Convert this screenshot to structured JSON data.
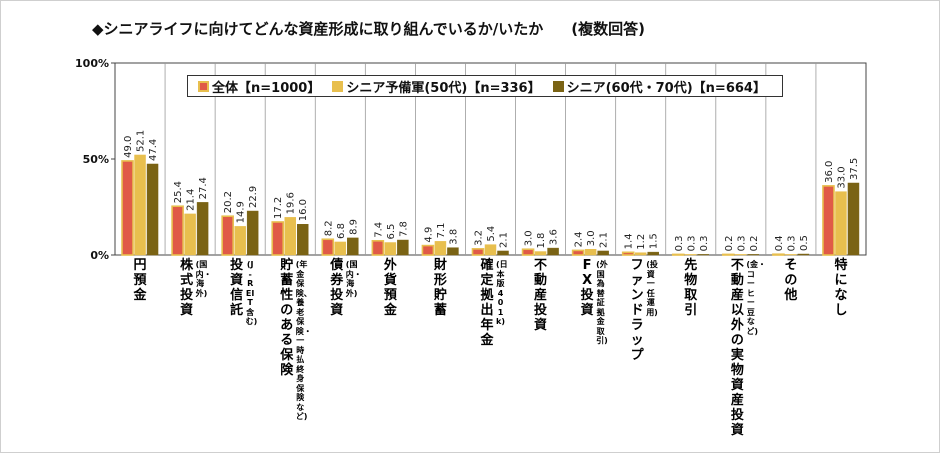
{
  "title": "◆シニアライフに向けてどんな資産形成に取り組んでいるか/いたか",
  "subtitle": "(複数回答)",
  "chart_data": {
    "type": "bar",
    "ylim": [
      0,
      100
    ],
    "yticks": [
      "0%",
      "50%",
      "100%"
    ],
    "grid": false,
    "legend_position": "top",
    "categories": [
      {
        "main": "円預金",
        "sub": ""
      },
      {
        "main": "株式投資",
        "sub": "(国内・海外)"
      },
      {
        "main": "投資信託",
        "sub": "(J-REIT含む)"
      },
      {
        "main": "貯蓄性のある保険",
        "sub": "(年金保険、養老保険・一時払終身保険など)"
      },
      {
        "main": "債券投資",
        "sub": "(国内・海外)"
      },
      {
        "main": "外貨預金",
        "sub": ""
      },
      {
        "main": "財形貯蓄",
        "sub": ""
      },
      {
        "main": "確定拠出年金",
        "sub": "(日本版401k)"
      },
      {
        "main": "不動産投資",
        "sub": ""
      },
      {
        "main": "FX投資",
        "sub": "(外国為替証拠金取引)"
      },
      {
        "main": "ファンドラップ",
        "sub": "(投資一任運用)"
      },
      {
        "main": "先物取引",
        "sub": ""
      },
      {
        "main": "不動産以外の実物資産投資",
        "sub": "(金・コーヒー豆など)"
      },
      {
        "main": "その他",
        "sub": ""
      },
      {
        "main": "特になし",
        "sub": ""
      }
    ],
    "series": [
      {
        "name": "全体【n=1000】",
        "color": "#e05a47",
        "border": "#e8bf4e",
        "values": [
          49.0,
          25.4,
          20.2,
          17.2,
          8.2,
          7.4,
          4.9,
          3.2,
          3.0,
          2.4,
          1.4,
          0.3,
          0.2,
          0.4,
          36.0
        ],
        "labels": [
          "49.0",
          "25.4",
          "20.2",
          "17.2",
          "8.2",
          "7.4",
          "4.9",
          "3.2",
          "3.0",
          "2.4",
          "1.4",
          "0.3",
          "0.2",
          "0.4",
          "36.0"
        ]
      },
      {
        "name": "シニア予備軍(50代)【n=336】",
        "color": "#e8bf4e",
        "border": "#e8bf4e",
        "values": [
          52.1,
          21.4,
          14.9,
          19.6,
          6.8,
          6.5,
          7.1,
          5.4,
          1.8,
          3.0,
          1.2,
          0.3,
          0.3,
          0.3,
          33.0
        ],
        "labels": [
          "52.1",
          "21.4",
          "14.9",
          "19.6",
          "6.8",
          "6.5",
          "7.1",
          "5.4",
          "1.8",
          "3.0",
          "1.2",
          "0.3",
          "0.3",
          "0.3",
          "33.0"
        ]
      },
      {
        "name": "シニア(60代・70代)【n=664】",
        "color": "#7a6314",
        "border": "#7a6314",
        "values": [
          47.4,
          27.4,
          22.9,
          16.0,
          8.9,
          7.8,
          3.8,
          2.1,
          3.6,
          2.1,
          1.5,
          0.3,
          0.2,
          0.5,
          37.5
        ],
        "labels": [
          "47.4",
          "27.4",
          "22.9",
          "16.0",
          "8.9",
          "7.8",
          "3.8",
          "2.1",
          "3.6",
          "2.1",
          "1.5",
          "0.3",
          "0.2",
          "0.5",
          "37.5"
        ]
      }
    ]
  }
}
